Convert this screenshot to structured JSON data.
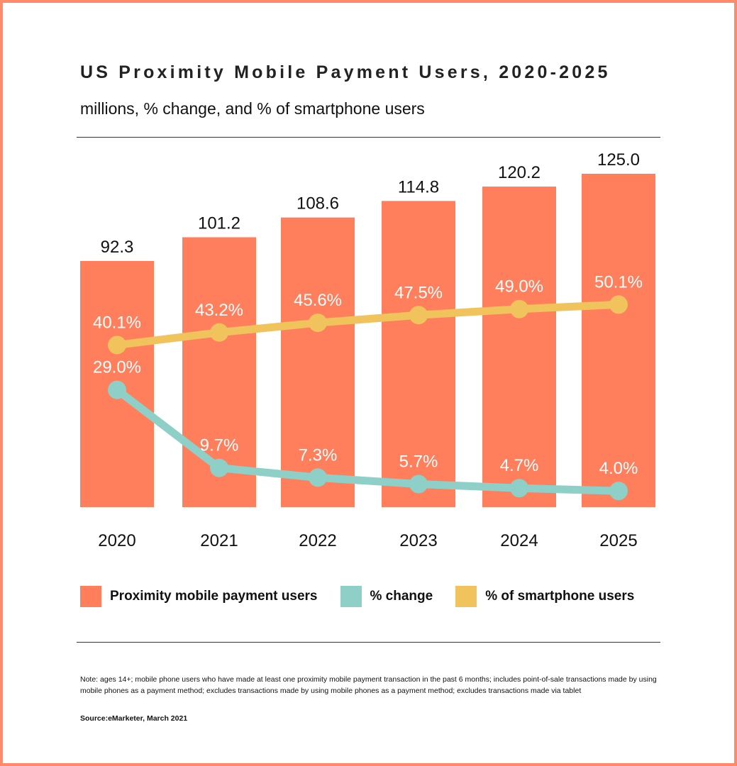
{
  "chart_data": {
    "type": "bar+line",
    "title": "US Proximity Mobile Payment Users, 2020-2025",
    "subtitle": "millions, % change, and % of smartphone users",
    "categories": [
      "2020",
      "2021",
      "2022",
      "2023",
      "2024",
      "2025"
    ],
    "series": [
      {
        "name": "Proximity mobile payment users",
        "type": "bar",
        "color": "#FF7F5C",
        "values": [
          92.3,
          101.2,
          108.6,
          114.8,
          120.2,
          125.0
        ],
        "labels": [
          "92.3",
          "101.2",
          "108.6",
          "114.8",
          "120.2",
          "125.0"
        ]
      },
      {
        "name": "% change",
        "type": "line",
        "color": "#8ECFC8",
        "values": [
          29.0,
          9.7,
          7.3,
          5.7,
          4.7,
          4.0
        ],
        "labels": [
          "29.0%",
          "9.7%",
          "7.3%",
          "5.7%",
          "4.7%",
          "4.0%"
        ]
      },
      {
        "name": "% of smartphone users",
        "type": "line",
        "color": "#F0C35C",
        "values": [
          40.1,
          43.2,
          45.6,
          47.5,
          49.0,
          50.1
        ],
        "labels": [
          "40.1%",
          "43.2%",
          "45.6%",
          "47.5%",
          "49.0%",
          "50.1%"
        ]
      }
    ],
    "legend": "bottom",
    "grid": false
  },
  "note": "Note: ages 14+; mobile phone users who have made at least one proximity mobile payment transaction in the past 6 months; includes point-of-sale transactions made by using mobile phones as a payment method; excludes transactions made by using mobile phones as a payment method; excludes transactions made via tablet",
  "source": "Source:eMarketer, March 2021",
  "border_color": "#FF8A6A"
}
